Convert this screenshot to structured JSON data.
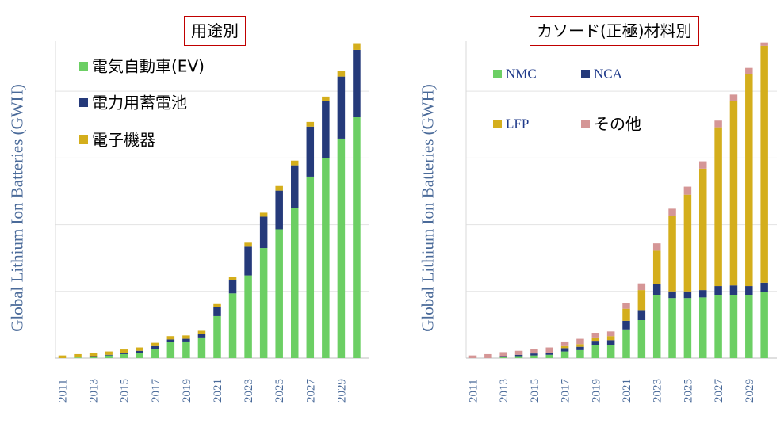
{
  "colors": {
    "green": "#6ccf64",
    "navy": "#253a7a",
    "gold": "#d4ae1c",
    "pink": "#d59696",
    "axis_text": "#4a6a99",
    "title_border": "#c00000"
  },
  "charts": [
    {
      "id": "by-application",
      "title": "用途別",
      "ylabel": "Global Lithium Ion Batteries (GWH)",
      "tick_labels": [
        "2011",
        "2013",
        "2015",
        "2017",
        "2019",
        "2021",
        "2023",
        "2025",
        "2027",
        "2029"
      ],
      "legend": [
        {
          "label": "電気自動車(EV)",
          "color": "#6ccf64"
        },
        {
          "label": "電力用蓄電池",
          "color": "#253a7a"
        },
        {
          "label": "電子機器",
          "color": "#d4ae1c"
        }
      ]
    },
    {
      "id": "by-cathode",
      "title": "カソード(正極)材料別",
      "ylabel": "Global Lithium Ion Batteries (GWH)",
      "tick_labels": [
        "2011",
        "2013",
        "2015",
        "2017",
        "2019",
        "2021",
        "2023",
        "2025",
        "2027",
        "2029"
      ],
      "legend": [
        {
          "label": "NMC",
          "color": "#6ccf64"
        },
        {
          "label": "NCA",
          "color": "#253a7a"
        },
        {
          "label": "LFP",
          "color": "#d4ae1c"
        },
        {
          "label": "その他",
          "color": "#d59696"
        }
      ]
    }
  ],
  "chart_data": [
    {
      "type": "bar",
      "stacked": true,
      "title": "用途別",
      "ylabel": "Global Lithium Ion Batteries (GWH)",
      "xlabel": "",
      "categories": [
        "2011",
        "2012",
        "2013",
        "2014",
        "2015",
        "2016",
        "2017",
        "2018",
        "2019",
        "2020",
        "2021",
        "2022",
        "2023",
        "2024",
        "2025",
        "2026",
        "2027",
        "2028",
        "2029",
        "2030"
      ],
      "ylim": [
        0,
        475
      ],
      "grid": true,
      "series": [
        {
          "name": "電気自動車(EV)",
          "color": "#6ccf64",
          "values": [
            0,
            1,
            2,
            4,
            6,
            8,
            14,
            24,
            25,
            31,
            63,
            97,
            124,
            165,
            193,
            225,
            272,
            300,
            329,
            361
          ]
        },
        {
          "name": "電力用蓄電池",
          "color": "#253a7a",
          "values": [
            0,
            0,
            1,
            1,
            2,
            3,
            4,
            4,
            4,
            5,
            13,
            20,
            43,
            47,
            58,
            64,
            75,
            85,
            93,
            101
          ]
        },
        {
          "name": "電子機器",
          "color": "#d4ae1c",
          "values": [
            4,
            5,
            5,
            5,
            5,
            5,
            5,
            5,
            5,
            5,
            5,
            5,
            6,
            6,
            7,
            7,
            7,
            7,
            8,
            10
          ]
        }
      ]
    },
    {
      "type": "bar",
      "stacked": true,
      "title": "カソード(正極)材料別",
      "ylabel": "Global Lithium Ion Batteries (GWH)",
      "xlabel": "",
      "categories": [
        "2011",
        "2012",
        "2013",
        "2014",
        "2015",
        "2016",
        "2017",
        "2018",
        "2019",
        "2020",
        "2021",
        "2022",
        "2023",
        "2024",
        "2025",
        "2026",
        "2027",
        "2028",
        "2029",
        "2030"
      ],
      "ylim": [
        0,
        475
      ],
      "grid": true,
      "series": [
        {
          "name": "NMC",
          "color": "#6ccf64",
          "values": [
            0,
            0,
            2,
            3,
            4,
            5,
            10,
            12,
            19,
            20,
            43,
            57,
            95,
            90,
            90,
            91,
            95,
            95,
            95,
            99
          ]
        },
        {
          "name": "NCA",
          "color": "#253a7a",
          "values": [
            0,
            0,
            1,
            2,
            3,
            3,
            5,
            5,
            7,
            7,
            13,
            15,
            16,
            10,
            10,
            11,
            13,
            14,
            13,
            14
          ]
        },
        {
          "name": "LFP",
          "color": "#d4ae1c",
          "values": [
            0,
            0,
            0,
            0,
            0,
            0,
            3,
            4,
            5,
            6,
            18,
            30,
            50,
            113,
            145,
            182,
            238,
            276,
            318,
            355
          ]
        },
        {
          "name": "その他",
          "color": "#d59696",
          "values": [
            4,
            6,
            6,
            6,
            7,
            8,
            7,
            8,
            7,
            7,
            9,
            10,
            11,
            11,
            12,
            11,
            10,
            10,
            9,
            5
          ]
        }
      ]
    }
  ]
}
